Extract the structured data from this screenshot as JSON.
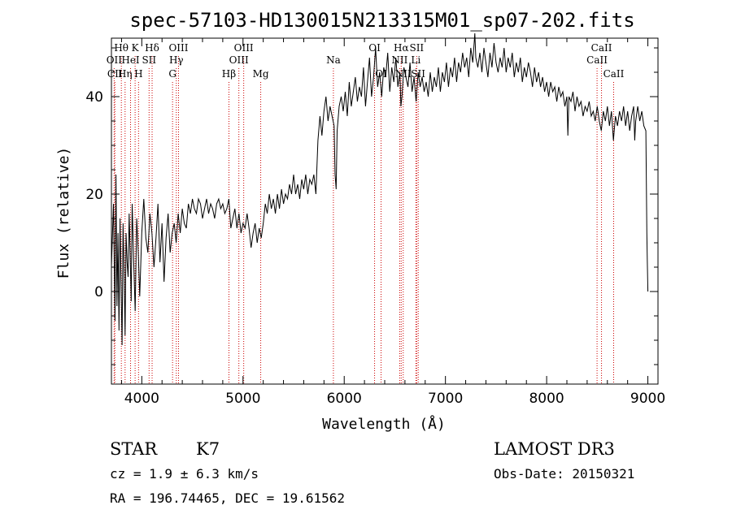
{
  "chart_data": {
    "type": "line",
    "title": "spec-57103-HD130015N213315M01_sp07-202.fits",
    "xlabel": "Wavelength (Å)",
    "ylabel": "Flux (relative)",
    "xlim": [
      3700,
      9100
    ],
    "ylim": [
      -19,
      52
    ],
    "xticks": [
      4000,
      5000,
      6000,
      7000,
      8000,
      9000
    ],
    "yticks": [
      0,
      20,
      40
    ],
    "x_minor_step": 200,
    "y_minor_step": 5,
    "series": [
      {
        "name": "flux",
        "points": [
          [
            3700,
            5
          ],
          [
            3720,
            18
          ],
          [
            3735,
            -6
          ],
          [
            3745,
            24
          ],
          [
            3755,
            -3
          ],
          [
            3765,
            12
          ],
          [
            3775,
            -8
          ],
          [
            3785,
            15
          ],
          [
            3795,
            2
          ],
          [
            3805,
            -11
          ],
          [
            3815,
            14
          ],
          [
            3825,
            4
          ],
          [
            3835,
            -9
          ],
          [
            3845,
            12
          ],
          [
            3855,
            6
          ],
          [
            3865,
            3
          ],
          [
            3875,
            16
          ],
          [
            3885,
            8
          ],
          [
            3895,
            -2
          ],
          [
            3905,
            18
          ],
          [
            3920,
            6
          ],
          [
            3935,
            -4
          ],
          [
            3950,
            15
          ],
          [
            3965,
            8
          ],
          [
            3980,
            -1
          ],
          [
            4000,
            12
          ],
          [
            4020,
            19
          ],
          [
            4040,
            11
          ],
          [
            4060,
            8
          ],
          [
            4080,
            16
          ],
          [
            4100,
            12
          ],
          [
            4120,
            5
          ],
          [
            4140,
            11
          ],
          [
            4160,
            18
          ],
          [
            4180,
            6
          ],
          [
            4200,
            14
          ],
          [
            4220,
            2
          ],
          [
            4240,
            11
          ],
          [
            4260,
            16
          ],
          [
            4280,
            8
          ],
          [
            4300,
            12
          ],
          [
            4320,
            14
          ],
          [
            4340,
            10
          ],
          [
            4360,
            16
          ],
          [
            4380,
            12
          ],
          [
            4400,
            17
          ],
          [
            4420,
            14
          ],
          [
            4440,
            13
          ],
          [
            4460,
            18
          ],
          [
            4480,
            16
          ],
          [
            4500,
            19
          ],
          [
            4520,
            17
          ],
          [
            4540,
            16
          ],
          [
            4560,
            19
          ],
          [
            4580,
            18
          ],
          [
            4600,
            15
          ],
          [
            4620,
            17
          ],
          [
            4640,
            19
          ],
          [
            4660,
            16
          ],
          [
            4680,
            18
          ],
          [
            4700,
            17
          ],
          [
            4720,
            15
          ],
          [
            4740,
            18
          ],
          [
            4760,
            19
          ],
          [
            4780,
            17
          ],
          [
            4800,
            18
          ],
          [
            4820,
            16
          ],
          [
            4840,
            17
          ],
          [
            4860,
            19
          ],
          [
            4880,
            13
          ],
          [
            4900,
            15
          ],
          [
            4920,
            17
          ],
          [
            4940,
            13
          ],
          [
            4960,
            16
          ],
          [
            4980,
            12
          ],
          [
            5000,
            14
          ],
          [
            5020,
            13
          ],
          [
            5040,
            16
          ],
          [
            5060,
            13
          ],
          [
            5080,
            9
          ],
          [
            5100,
            12
          ],
          [
            5120,
            14
          ],
          [
            5140,
            10
          ],
          [
            5160,
            13
          ],
          [
            5180,
            11
          ],
          [
            5200,
            14
          ],
          [
            5220,
            18
          ],
          [
            5240,
            16
          ],
          [
            5260,
            20
          ],
          [
            5280,
            17
          ],
          [
            5300,
            19
          ],
          [
            5320,
            16
          ],
          [
            5340,
            20
          ],
          [
            5360,
            17
          ],
          [
            5380,
            21
          ],
          [
            5400,
            18
          ],
          [
            5420,
            20
          ],
          [
            5440,
            19
          ],
          [
            5460,
            22
          ],
          [
            5480,
            20
          ],
          [
            5500,
            24
          ],
          [
            5520,
            20
          ],
          [
            5540,
            22
          ],
          [
            5560,
            19
          ],
          [
            5580,
            23
          ],
          [
            5600,
            21
          ],
          [
            5620,
            24
          ],
          [
            5640,
            20
          ],
          [
            5660,
            23
          ],
          [
            5680,
            22
          ],
          [
            5700,
            24
          ],
          [
            5720,
            20
          ],
          [
            5740,
            31
          ],
          [
            5760,
            36
          ],
          [
            5780,
            32
          ],
          [
            5800,
            37
          ],
          [
            5820,
            40
          ],
          [
            5840,
            35
          ],
          [
            5860,
            38
          ],
          [
            5880,
            36
          ],
          [
            5900,
            34
          ],
          [
            5910,
            24
          ],
          [
            5920,
            21
          ],
          [
            5930,
            33
          ],
          [
            5950,
            38
          ],
          [
            5970,
            40
          ],
          [
            5990,
            37
          ],
          [
            6010,
            41
          ],
          [
            6030,
            36
          ],
          [
            6050,
            43
          ],
          [
            6070,
            38
          ],
          [
            6090,
            41
          ],
          [
            6110,
            44
          ],
          [
            6130,
            39
          ],
          [
            6150,
            42
          ],
          [
            6170,
            40
          ],
          [
            6190,
            46
          ],
          [
            6210,
            38
          ],
          [
            6230,
            43
          ],
          [
            6250,
            48
          ],
          [
            6270,
            40
          ],
          [
            6290,
            44
          ],
          [
            6310,
            50
          ],
          [
            6330,
            42
          ],
          [
            6350,
            45
          ],
          [
            6370,
            40
          ],
          [
            6390,
            46
          ],
          [
            6410,
            44
          ],
          [
            6430,
            49
          ],
          [
            6450,
            41
          ],
          [
            6470,
            46
          ],
          [
            6490,
            43
          ],
          [
            6510,
            48
          ],
          [
            6530,
            42
          ],
          [
            6550,
            45
          ],
          [
            6560,
            38
          ],
          [
            6570,
            40
          ],
          [
            6590,
            46
          ],
          [
            6610,
            44
          ],
          [
            6630,
            42
          ],
          [
            6650,
            47
          ],
          [
            6670,
            41
          ],
          [
            6690,
            44
          ],
          [
            6710,
            39
          ],
          [
            6730,
            45
          ],
          [
            6750,
            42
          ],
          [
            6770,
            44
          ],
          [
            6790,
            41
          ],
          [
            6810,
            43
          ],
          [
            6830,
            40
          ],
          [
            6850,
            45
          ],
          [
            6870,
            41
          ],
          [
            6890,
            44
          ],
          [
            6910,
            42
          ],
          [
            6930,
            46
          ],
          [
            6950,
            41
          ],
          [
            6970,
            45
          ],
          [
            6990,
            43
          ],
          [
            7010,
            47
          ],
          [
            7030,
            42
          ],
          [
            7050,
            46
          ],
          [
            7070,
            44
          ],
          [
            7090,
            48
          ],
          [
            7110,
            43
          ],
          [
            7130,
            47
          ],
          [
            7150,
            45
          ],
          [
            7170,
            49
          ],
          [
            7190,
            46
          ],
          [
            7210,
            48
          ],
          [
            7230,
            44
          ],
          [
            7250,
            50
          ],
          [
            7270,
            47
          ],
          [
            7290,
            53
          ],
          [
            7300,
            48
          ],
          [
            7320,
            46
          ],
          [
            7340,
            49
          ],
          [
            7360,
            45
          ],
          [
            7380,
            50
          ],
          [
            7400,
            47
          ],
          [
            7420,
            44
          ],
          [
            7440,
            49
          ],
          [
            7460,
            46
          ],
          [
            7480,
            51
          ],
          [
            7500,
            47
          ],
          [
            7520,
            45
          ],
          [
            7540,
            48
          ],
          [
            7560,
            46
          ],
          [
            7580,
            50
          ],
          [
            7600,
            45
          ],
          [
            7620,
            48
          ],
          [
            7640,
            46
          ],
          [
            7660,
            49
          ],
          [
            7680,
            44
          ],
          [
            7700,
            47
          ],
          [
            7720,
            45
          ],
          [
            7740,
            48
          ],
          [
            7760,
            43
          ],
          [
            7780,
            46
          ],
          [
            7800,
            44
          ],
          [
            7820,
            47
          ],
          [
            7840,
            45
          ],
          [
            7860,
            42
          ],
          [
            7880,
            46
          ],
          [
            7900,
            43
          ],
          [
            7920,
            45
          ],
          [
            7940,
            42
          ],
          [
            7960,
            44
          ],
          [
            7980,
            41
          ],
          [
            8000,
            43
          ],
          [
            8020,
            40
          ],
          [
            8040,
            43
          ],
          [
            8060,
            41
          ],
          [
            8080,
            42
          ],
          [
            8100,
            39
          ],
          [
            8120,
            42
          ],
          [
            8140,
            40
          ],
          [
            8160,
            41
          ],
          [
            8180,
            38
          ],
          [
            8200,
            40
          ],
          [
            8210,
            32
          ],
          [
            8220,
            40
          ],
          [
            8240,
            39
          ],
          [
            8260,
            41
          ],
          [
            8280,
            37
          ],
          [
            8300,
            40
          ],
          [
            8320,
            38
          ],
          [
            8340,
            39
          ],
          [
            8360,
            36
          ],
          [
            8380,
            38
          ],
          [
            8400,
            37
          ],
          [
            8420,
            39
          ],
          [
            8440,
            36
          ],
          [
            8460,
            37
          ],
          [
            8480,
            35
          ],
          [
            8500,
            38
          ],
          [
            8520,
            35
          ],
          [
            8540,
            33
          ],
          [
            8560,
            37
          ],
          [
            8580,
            35
          ],
          [
            8600,
            38
          ],
          [
            8620,
            34
          ],
          [
            8640,
            37
          ],
          [
            8660,
            31
          ],
          [
            8680,
            36
          ],
          [
            8700,
            34
          ],
          [
            8720,
            37
          ],
          [
            8740,
            35
          ],
          [
            8760,
            38
          ],
          [
            8780,
            34
          ],
          [
            8800,
            37
          ],
          [
            8820,
            33
          ],
          [
            8840,
            36
          ],
          [
            8860,
            38
          ],
          [
            8870,
            31
          ],
          [
            8880,
            35
          ],
          [
            8900,
            38
          ],
          [
            8920,
            35
          ],
          [
            8940,
            37
          ],
          [
            8960,
            34
          ],
          [
            8980,
            33
          ],
          [
            8990,
            12
          ],
          [
            8995,
            6
          ],
          [
            9000,
            0
          ]
        ]
      }
    ],
    "spectral_lines": [
      {
        "label": "Hθ",
        "wavelength": 3798,
        "row": 1
      },
      {
        "label": "OII",
        "wavelength": 3727,
        "row": 2
      },
      {
        "label": "CII",
        "wavelength": 3734,
        "row": 3
      },
      {
        "label": "Hη",
        "wavelength": 3835,
        "row": 3
      },
      {
        "label": "K",
        "wavelength": 3934,
        "row": 1
      },
      {
        "label": "HeI",
        "wavelength": 3889,
        "row": 2
      },
      {
        "label": "H",
        "wavelength": 3968,
        "row": 3
      },
      {
        "label": "Hδ",
        "wavelength": 4102,
        "row": 1
      },
      {
        "label": "SII",
        "wavelength": 4072,
        "row": 2
      },
      {
        "label": "OIII",
        "wavelength": 4363,
        "row": 1
      },
      {
        "label": "Hγ",
        "wavelength": 4341,
        "row": 2
      },
      {
        "label": "G",
        "wavelength": 4304,
        "row": 3
      },
      {
        "label": "OIII",
        "wavelength": 5007,
        "row": 1
      },
      {
        "label": "OIII",
        "wavelength": 4959,
        "row": 2
      },
      {
        "label": "Hβ",
        "wavelength": 4861,
        "row": 3
      },
      {
        "label": "Mg",
        "wavelength": 5175,
        "row": 3
      },
      {
        "label": "Na",
        "wavelength": 5893,
        "row": 2
      },
      {
        "label": "OI",
        "wavelength": 6300,
        "row": 1
      },
      {
        "label": "OI",
        "wavelength": 6364,
        "row": 3
      },
      {
        "label": "Hα",
        "wavelength": 6563,
        "row": 1
      },
      {
        "label": "SII",
        "wavelength": 6716,
        "row": 1
      },
      {
        "label": "NII",
        "wavelength": 6548,
        "row": 2
      },
      {
        "label": "Li",
        "wavelength": 6708,
        "row": 2
      },
      {
        "label": "NII",
        "wavelength": 6583,
        "row": 3
      },
      {
        "label": "SII",
        "wavelength": 6731,
        "row": 3
      },
      {
        "label": "CaII",
        "wavelength": 8542,
        "row": 1
      },
      {
        "label": "CaII",
        "wavelength": 8498,
        "row": 2
      },
      {
        "label": "CaII",
        "wavelength": 8662,
        "row": 3
      }
    ],
    "line_marker_color": "#cc0000",
    "series_color": "#000000"
  },
  "info": {
    "object_class": "STAR",
    "subclass": "K7",
    "survey": "LAMOST DR3",
    "velocity": "cz = 1.9 ± 6.3 km/s",
    "obs_date": "Obs-Date: 20150321",
    "coords": "RA = 196.74465, DEC =  19.61562"
  }
}
